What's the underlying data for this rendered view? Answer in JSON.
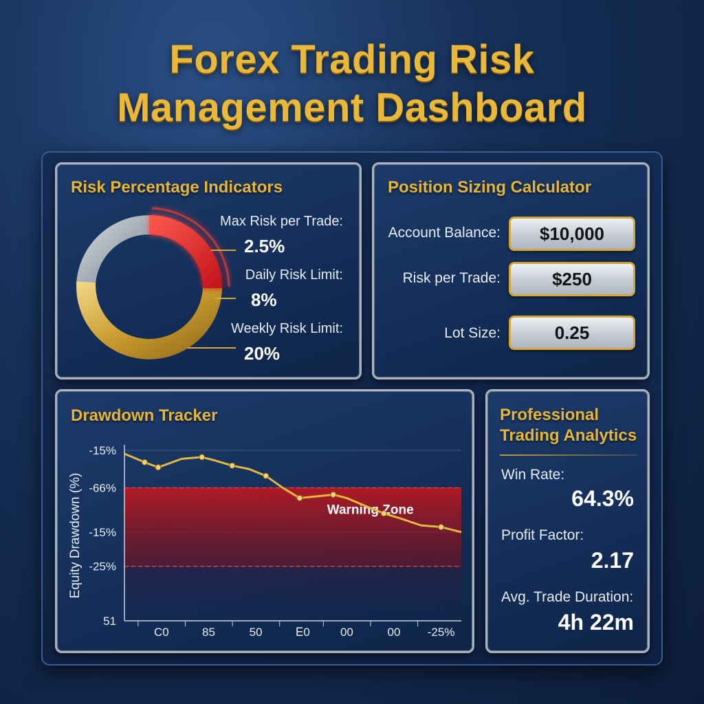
{
  "title": {
    "line1": "Forex Trading Risk",
    "line2": "Management Dashboard"
  },
  "risk_panel": {
    "title": "Risk Percentage Indicators",
    "items": [
      {
        "label": "Max Risk per Trade:",
        "value": "2.5%"
      },
      {
        "label": "Daily Risk Limit:",
        "value": "8%"
      },
      {
        "label": "Weekly Risk Limit:",
        "value": "20%"
      }
    ],
    "colors": {
      "max": "#e0262a",
      "daily": "#d6a93a",
      "weekly": "#9aa3ad"
    }
  },
  "position_panel": {
    "title": "Position Sizing Calculator",
    "fields": [
      {
        "label": "Account Balance:",
        "value": "$10,000"
      },
      {
        "label": "Risk per Trade:",
        "value": "$250"
      },
      {
        "label": "Lot Size:",
        "value": "0.25"
      }
    ]
  },
  "drawdown_panel": {
    "title": "Drawdown Tracker",
    "zone_label": "Warning Zone"
  },
  "analytics_panel": {
    "title_line1": "Professional",
    "title_line2": "Trading Analytics",
    "metrics": [
      {
        "label": "Win Rate:",
        "value": "64.3%"
      },
      {
        "label": "Profit Factor:",
        "value": "2.17"
      },
      {
        "label": "Avg. Trade Duration:",
        "value": "4h 22m"
      }
    ]
  },
  "chart_data": {
    "type": "line",
    "title": "Drawdown Tracker",
    "ylabel": "Equity Drawdown (%)",
    "xlabel": "",
    "y_tick_labels": [
      "-15%",
      "-66%",
      "-15%",
      "-25%",
      "51"
    ],
    "x_tick_labels": [
      "C0",
      "85",
      "50",
      "Ꭼ0",
      "00",
      "00",
      "-25%"
    ],
    "series": [
      {
        "values": [
          0.98,
          0.93,
          0.9,
          0.95,
          0.96,
          0.94,
          0.91,
          0.89,
          0.85,
          0.78,
          0.72,
          0.73,
          0.74,
          0.72,
          0.67,
          0.63,
          0.6,
          0.56,
          0.55,
          0.52
        ],
        "color": "#e2b93e"
      }
    ],
    "x": [
      0,
      0.06,
      0.1,
      0.17,
      0.23,
      0.27,
      0.32,
      0.37,
      0.42,
      0.47,
      0.52,
      0.57,
      0.62,
      0.66,
      0.72,
      0.77,
      0.82,
      0.88,
      0.94,
      1.0
    ],
    "ylim": [
      0,
      1
    ],
    "zones": [
      {
        "label": "Warning Zone",
        "from": 0.32,
        "to": 0.78,
        "color": "#c0181f"
      }
    ],
    "grid": true
  }
}
